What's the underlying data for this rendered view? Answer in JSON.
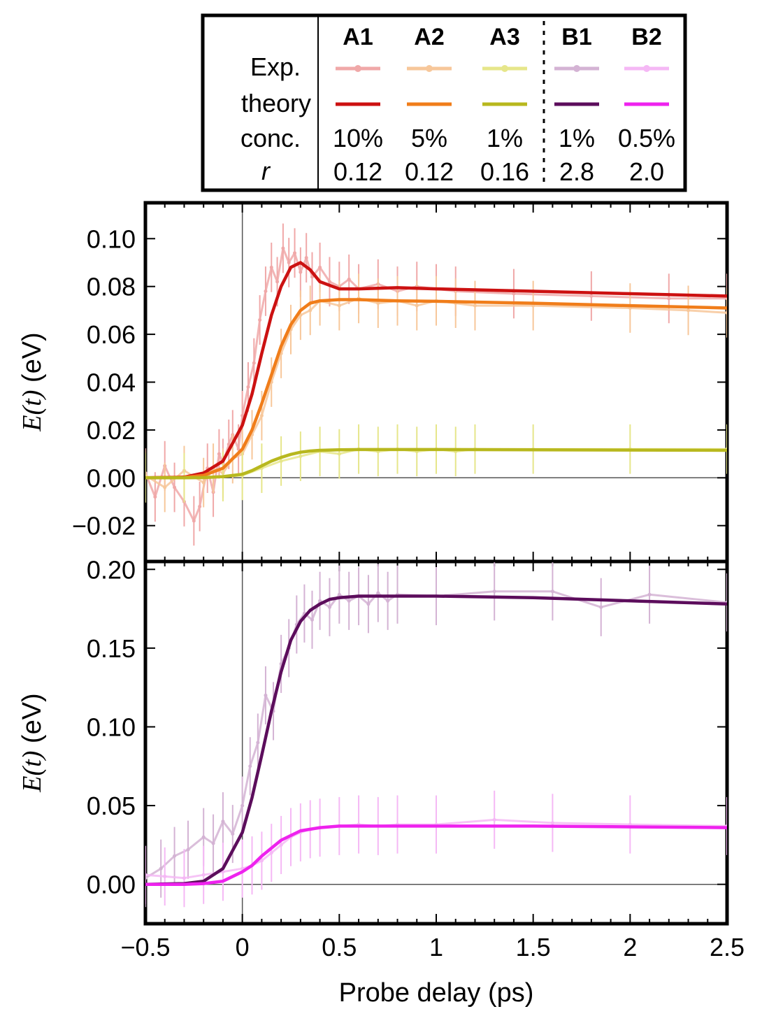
{
  "legend": {
    "row_labels": {
      "exp": "Exp.",
      "theory": "theory",
      "conc": "conc.",
      "r": "r"
    },
    "samples": [
      {
        "name": "A1",
        "conc": "10%",
        "r": "0.12",
        "exp_color": "#f0a8a8",
        "theory_color": "#cc1111"
      },
      {
        "name": "A2",
        "conc": "5%",
        "r": "0.12",
        "exp_color": "#f7c79a",
        "theory_color": "#f07d1a"
      },
      {
        "name": "A3",
        "conc": "1%",
        "r": "0.16",
        "exp_color": "#e6e68a",
        "theory_color": "#b8b81e"
      },
      {
        "name": "B1",
        "conc": "1%",
        "r": "2.8",
        "exp_color": "#d4b3d4",
        "theory_color": "#5c0d5c"
      },
      {
        "name": "B2",
        "conc": "0.5%",
        "r": "2.0",
        "exp_color": "#f5b8f5",
        "theory_color": "#ee22ee"
      }
    ]
  },
  "chart_data": [
    {
      "type": "line",
      "panel": "top",
      "xlabel": "Probe delay (ps)",
      "ylabel": {
        "italic": "E(t)",
        "unit": " (eV)"
      },
      "xlim": [
        -0.5,
        2.5
      ],
      "ylim": [
        -0.035,
        0.115
      ],
      "yticks": [
        "−0.02",
        "0.00",
        "0.02",
        "0.04",
        "0.06",
        "0.08",
        "0.10"
      ],
      "ytick_values": [
        -0.02,
        0.0,
        0.02,
        0.04,
        0.06,
        0.08,
        0.1
      ],
      "series": [
        {
          "name": "A1",
          "kind": "theory",
          "x": [
            -0.5,
            -0.3,
            -0.2,
            -0.1,
            0,
            0.05,
            0.1,
            0.15,
            0.2,
            0.25,
            0.3,
            0.35,
            0.4,
            0.5,
            0.6,
            0.8,
            1.0,
            1.5,
            2.0,
            2.5
          ],
          "y": [
            0,
            0.0003,
            0.002,
            0.007,
            0.022,
            0.035,
            0.052,
            0.068,
            0.08,
            0.088,
            0.09,
            0.087,
            0.082,
            0.079,
            0.079,
            0.0795,
            0.079,
            0.078,
            0.077,
            0.076
          ]
        },
        {
          "name": "A2",
          "kind": "theory",
          "x": [
            -0.5,
            -0.3,
            -0.2,
            -0.1,
            0,
            0.05,
            0.1,
            0.15,
            0.2,
            0.25,
            0.3,
            0.35,
            0.4,
            0.5,
            0.6,
            0.8,
            1.0,
            1.5,
            2.0,
            2.5
          ],
          "y": [
            0,
            0.0002,
            0.001,
            0.004,
            0.012,
            0.02,
            0.031,
            0.043,
            0.055,
            0.064,
            0.07,
            0.073,
            0.074,
            0.0745,
            0.0745,
            0.074,
            0.0738,
            0.073,
            0.072,
            0.071
          ]
        },
        {
          "name": "A3",
          "kind": "theory",
          "x": [
            -0.5,
            -0.3,
            -0.2,
            -0.1,
            0,
            0.05,
            0.1,
            0.15,
            0.2,
            0.25,
            0.3,
            0.35,
            0.4,
            0.5,
            0.6,
            0.8,
            1.0,
            1.5,
            2.0,
            2.5
          ],
          "y": [
            0,
            0,
            0.0001,
            0.0005,
            0.0015,
            0.003,
            0.005,
            0.007,
            0.0085,
            0.0098,
            0.0107,
            0.0112,
            0.0115,
            0.0117,
            0.0118,
            0.0118,
            0.0118,
            0.0117,
            0.0116,
            0.0115
          ]
        },
        {
          "name": "A1",
          "kind": "exp",
          "x": [
            -0.5,
            -0.45,
            -0.4,
            -0.35,
            -0.3,
            -0.25,
            -0.22,
            -0.18,
            -0.15,
            -0.12,
            -0.1,
            -0.07,
            -0.05,
            -0.02,
            0,
            0.03,
            0.06,
            0.09,
            0.12,
            0.15,
            0.18,
            0.21,
            0.24,
            0.27,
            0.3,
            0.33,
            0.36,
            0.4,
            0.45,
            0.5,
            0.55,
            0.6,
            0.7,
            0.8,
            0.9,
            1.0,
            1.1,
            1.4,
            1.8,
            2.2,
            2.5
          ],
          "y": [
            0.002,
            -0.008,
            0.005,
            -0.004,
            -0.01,
            -0.018,
            -0.012,
            0.004,
            -0.006,
            0.01,
            0.006,
            0.014,
            0.018,
            0.012,
            0.026,
            0.038,
            0.048,
            0.066,
            0.078,
            0.088,
            0.082,
            0.096,
            0.09,
            0.094,
            0.086,
            0.092,
            0.084,
            0.088,
            0.082,
            0.08,
            0.083,
            0.079,
            0.081,
            0.078,
            0.08,
            0.079,
            0.078,
            0.077,
            0.076,
            0.075,
            0.075
          ]
        },
        {
          "name": "A2",
          "kind": "exp",
          "x": [
            -0.5,
            -0.4,
            -0.3,
            -0.2,
            -0.15,
            -0.1,
            -0.05,
            0,
            0.05,
            0.1,
            0.15,
            0.2,
            0.25,
            0.3,
            0.35,
            0.4,
            0.5,
            0.6,
            0.7,
            0.8,
            0.9,
            1.0,
            1.1,
            1.2,
            1.5,
            2.0,
            2.3,
            2.5
          ],
          "y": [
            0.001,
            -0.004,
            0.003,
            -0.002,
            0.004,
            0.002,
            0.008,
            0.01,
            0.018,
            0.026,
            0.04,
            0.052,
            0.062,
            0.068,
            0.07,
            0.074,
            0.072,
            0.075,
            0.073,
            0.074,
            0.072,
            0.074,
            0.073,
            0.072,
            0.072,
            0.071,
            0.07,
            0.069
          ]
        },
        {
          "name": "A3",
          "kind": "exp",
          "x": [
            -0.5,
            -0.3,
            -0.1,
            0,
            0.1,
            0.2,
            0.3,
            0.4,
            0.5,
            0.6,
            0.7,
            0.8,
            0.9,
            1.0,
            1.1,
            1.2,
            1.5,
            2.0,
            2.5
          ],
          "y": [
            0,
            0,
            0.0005,
            0.001,
            0.004,
            0.007,
            0.009,
            0.011,
            0.01,
            0.012,
            0.011,
            0.012,
            0.011,
            0.012,
            0.011,
            0.012,
            0.012,
            0.012,
            0.012
          ]
        }
      ]
    },
    {
      "type": "line",
      "panel": "bottom",
      "xlabel": "Probe delay (ps)",
      "ylabel": {
        "italic": "E(t)",
        "unit": " (eV)"
      },
      "xlim": [
        -0.5,
        2.5
      ],
      "ylim": [
        -0.025,
        0.205
      ],
      "xticks": [
        "−0.5",
        "0",
        "0.5",
        "1",
        "1.5",
        "2",
        "2.5"
      ],
      "xtick_values": [
        -0.5,
        0,
        0.5,
        1,
        1.5,
        2,
        2.5
      ],
      "yticks": [
        "0.00",
        "0.05",
        "0.10",
        "0.15",
        "0.20"
      ],
      "ytick_values": [
        0.0,
        0.05,
        0.1,
        0.15,
        0.2
      ],
      "series": [
        {
          "name": "B1",
          "kind": "theory",
          "x": [
            -0.5,
            -0.3,
            -0.2,
            -0.1,
            0,
            0.05,
            0.1,
            0.15,
            0.2,
            0.25,
            0.3,
            0.35,
            0.4,
            0.45,
            0.5,
            0.6,
            0.8,
            1.0,
            1.5,
            2.0,
            2.5
          ],
          "y": [
            0,
            0.0005,
            0.002,
            0.01,
            0.033,
            0.055,
            0.082,
            0.11,
            0.135,
            0.155,
            0.167,
            0.174,
            0.178,
            0.181,
            0.182,
            0.183,
            0.183,
            0.183,
            0.182,
            0.18,
            0.178
          ]
        },
        {
          "name": "B2",
          "kind": "theory",
          "x": [
            -0.5,
            -0.3,
            -0.2,
            -0.1,
            0,
            0.05,
            0.1,
            0.15,
            0.2,
            0.25,
            0.3,
            0.35,
            0.4,
            0.5,
            0.6,
            0.8,
            1.0,
            1.5,
            2.0,
            2.5
          ],
          "y": [
            0,
            0,
            0.0005,
            0.002,
            0.008,
            0.012,
            0.018,
            0.023,
            0.028,
            0.031,
            0.034,
            0.035,
            0.036,
            0.037,
            0.037,
            0.037,
            0.037,
            0.037,
            0.0365,
            0.036
          ]
        },
        {
          "name": "B1",
          "kind": "exp",
          "x": [
            -0.5,
            -0.42,
            -0.35,
            -0.28,
            -0.2,
            -0.15,
            -0.1,
            -0.05,
            0,
            0.04,
            0.08,
            0.12,
            0.16,
            0.2,
            0.24,
            0.28,
            0.32,
            0.36,
            0.4,
            0.45,
            0.5,
            0.55,
            0.6,
            0.65,
            0.7,
            0.75,
            0.8,
            1.0,
            1.3,
            1.6,
            1.85,
            2.1,
            2.5
          ],
          "y": [
            0.004,
            0.01,
            0.018,
            0.022,
            0.03,
            0.026,
            0.04,
            0.032,
            0.05,
            0.075,
            0.09,
            0.12,
            0.11,
            0.14,
            0.15,
            0.165,
            0.172,
            0.168,
            0.18,
            0.176,
            0.184,
            0.18,
            0.183,
            0.178,
            0.185,
            0.18,
            0.184,
            0.183,
            0.186,
            0.186,
            0.176,
            0.184,
            0.179
          ]
        },
        {
          "name": "B2",
          "kind": "exp",
          "x": [
            -0.5,
            -0.4,
            -0.3,
            -0.2,
            -0.1,
            0,
            0.05,
            0.1,
            0.15,
            0.2,
            0.25,
            0.3,
            0.35,
            0.4,
            0.5,
            0.6,
            0.7,
            0.8,
            1.0,
            1.3,
            1.6,
            2.0,
            2.5
          ],
          "y": [
            0.006,
            0.005,
            0.004,
            0.006,
            0.008,
            0.01,
            0.012,
            0.015,
            0.02,
            0.025,
            0.03,
            0.033,
            0.035,
            0.036,
            0.037,
            0.038,
            0.037,
            0.038,
            0.038,
            0.041,
            0.039,
            0.038,
            0.037
          ]
        }
      ]
    }
  ]
}
